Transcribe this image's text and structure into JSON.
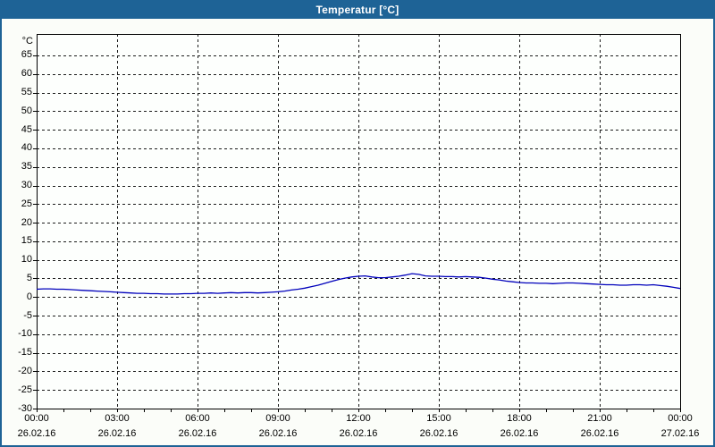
{
  "window": {
    "title": "Temperatur [°C]"
  },
  "colors": {
    "titlebar": "#1e6396",
    "titlebar_text": "#ffffff",
    "window_border": "#1e6396",
    "body_bg": "#fbfdf9",
    "plot_bg": "#fdfffd",
    "grid": "#1c1c1c",
    "axis": "#000000",
    "series_line": "#0000bb",
    "label_text": "#000000"
  },
  "chart_data": {
    "type": "line",
    "title": "Temperatur [°C]",
    "ylabel": "°C",
    "ylim": [
      -30,
      65
    ],
    "y_tick_step": 5,
    "x_range_hours": [
      0,
      24
    ],
    "x_major_tick_step_hours": 3,
    "x_minor_tick_step_hours": 1,
    "grid": "dashed",
    "legend": "none",
    "x_ticks": [
      {
        "time": "00:00",
        "date": "26.02.16"
      },
      {
        "time": "03:00",
        "date": "26.02.16"
      },
      {
        "time": "06:00",
        "date": "26.02.16"
      },
      {
        "time": "09:00",
        "date": "26.02.16"
      },
      {
        "time": "12:00",
        "date": "26.02.16"
      },
      {
        "time": "15:00",
        "date": "26.02.16"
      },
      {
        "time": "18:00",
        "date": "26.02.16"
      },
      {
        "time": "21:00",
        "date": "26.02.16"
      },
      {
        "time": "00:00",
        "date": "27.02.16"
      }
    ],
    "series": [
      {
        "name": "Temperatur",
        "unit": "°C",
        "points_hour_degC": [
          [
            0.0,
            2.1
          ],
          [
            0.25,
            2.2
          ],
          [
            0.5,
            2.2
          ],
          [
            0.75,
            2.1
          ],
          [
            1.0,
            2.1
          ],
          [
            1.25,
            2.0
          ],
          [
            1.5,
            1.9
          ],
          [
            1.75,
            1.8
          ],
          [
            2.0,
            1.7
          ],
          [
            2.25,
            1.6
          ],
          [
            2.5,
            1.5
          ],
          [
            2.75,
            1.4
          ],
          [
            3.0,
            1.3
          ],
          [
            3.25,
            1.2
          ],
          [
            3.5,
            1.1
          ],
          [
            3.75,
            1.0
          ],
          [
            4.0,
            1.0
          ],
          [
            4.25,
            0.9
          ],
          [
            4.5,
            0.9
          ],
          [
            4.75,
            0.8
          ],
          [
            5.0,
            0.8
          ],
          [
            5.25,
            0.8
          ],
          [
            5.5,
            0.9
          ],
          [
            5.75,
            0.9
          ],
          [
            6.0,
            1.0
          ],
          [
            6.25,
            1.0
          ],
          [
            6.5,
            1.1
          ],
          [
            6.75,
            1.0
          ],
          [
            7.0,
            1.1
          ],
          [
            7.25,
            1.2
          ],
          [
            7.5,
            1.1
          ],
          [
            7.75,
            1.2
          ],
          [
            8.0,
            1.2
          ],
          [
            8.25,
            1.1
          ],
          [
            8.5,
            1.2
          ],
          [
            8.75,
            1.3
          ],
          [
            9.0,
            1.4
          ],
          [
            9.25,
            1.6
          ],
          [
            9.5,
            1.9
          ],
          [
            9.75,
            2.1
          ],
          [
            10.0,
            2.4
          ],
          [
            10.25,
            2.8
          ],
          [
            10.5,
            3.2
          ],
          [
            10.75,
            3.7
          ],
          [
            11.0,
            4.2
          ],
          [
            11.25,
            4.7
          ],
          [
            11.5,
            5.1
          ],
          [
            11.75,
            5.4
          ],
          [
            12.0,
            5.6
          ],
          [
            12.25,
            5.7
          ],
          [
            12.5,
            5.4
          ],
          [
            12.75,
            5.2
          ],
          [
            13.0,
            5.2
          ],
          [
            13.25,
            5.4
          ],
          [
            13.5,
            5.6
          ],
          [
            13.75,
            5.9
          ],
          [
            14.0,
            6.3
          ],
          [
            14.25,
            6.1
          ],
          [
            14.5,
            5.7
          ],
          [
            14.75,
            5.6
          ],
          [
            15.0,
            5.6
          ],
          [
            15.25,
            5.5
          ],
          [
            15.5,
            5.5
          ],
          [
            15.75,
            5.4
          ],
          [
            16.0,
            5.5
          ],
          [
            16.25,
            5.4
          ],
          [
            16.5,
            5.3
          ],
          [
            16.75,
            5.1
          ],
          [
            17.0,
            4.8
          ],
          [
            17.25,
            4.6
          ],
          [
            17.5,
            4.3
          ],
          [
            17.75,
            4.1
          ],
          [
            18.0,
            3.9
          ],
          [
            18.25,
            3.8
          ],
          [
            18.5,
            3.8
          ],
          [
            18.75,
            3.7
          ],
          [
            19.0,
            3.7
          ],
          [
            19.25,
            3.6
          ],
          [
            19.5,
            3.7
          ],
          [
            19.75,
            3.8
          ],
          [
            20.0,
            3.8
          ],
          [
            20.25,
            3.7
          ],
          [
            20.5,
            3.6
          ],
          [
            20.75,
            3.5
          ],
          [
            21.0,
            3.4
          ],
          [
            21.25,
            3.3
          ],
          [
            21.5,
            3.3
          ],
          [
            21.75,
            3.2
          ],
          [
            22.0,
            3.2
          ],
          [
            22.25,
            3.3
          ],
          [
            22.5,
            3.3
          ],
          [
            22.75,
            3.2
          ],
          [
            23.0,
            3.3
          ],
          [
            23.25,
            3.1
          ],
          [
            23.5,
            2.9
          ],
          [
            23.75,
            2.6
          ],
          [
            24.0,
            2.3
          ]
        ]
      }
    ]
  }
}
